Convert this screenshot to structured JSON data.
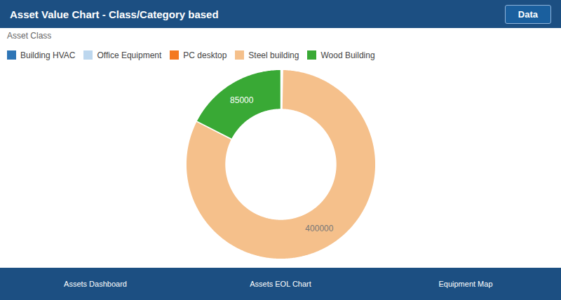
{
  "chart_data": {
    "type": "donut",
    "title": "Asset Value Chart - Class/Category based",
    "subtitle": "Asset Class",
    "categories": [
      "Building HVAC",
      "Office Equipment",
      "PC desktop",
      "Steel building",
      "Wood Building"
    ],
    "values": [
      500,
      500,
      500,
      400000,
      85000
    ],
    "colors": [
      "#2e75b6",
      "#bdd7ee",
      "#f47920",
      "#f5c08b",
      "#39a935"
    ],
    "data_labels": true,
    "value_labels": [
      null,
      null,
      null,
      "400000",
      "85000"
    ],
    "legend": "top-left",
    "annotations": [
      "Data",
      "Assets Dashboard",
      "Assets EOL Chart",
      "Equipment Map"
    ]
  }
}
